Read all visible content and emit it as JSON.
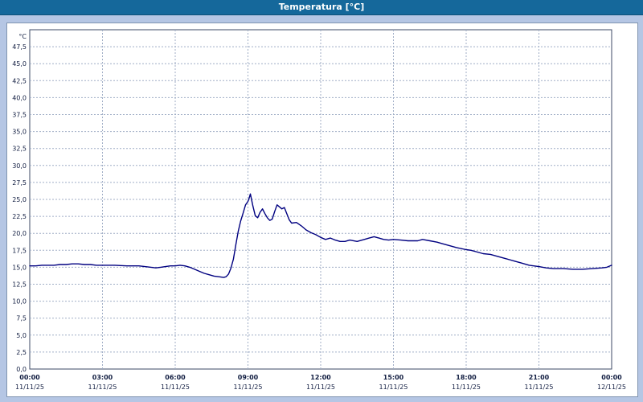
{
  "window": {
    "title": "Temperatura [°C]"
  },
  "colors": {
    "titlebar_bg": "#15689b",
    "page_bg": "#b5c6e4",
    "panel_bg": "#ffffff",
    "grid": "#a0aec6",
    "plot_border": "#3c4a66",
    "axis_text": "#101c40",
    "line": "#000080"
  },
  "chart_data": {
    "type": "line",
    "title": "Temperatura [°C]",
    "xlabel": "",
    "ylabel": "°C",
    "ylim": [
      0,
      50
    ],
    "xlim_hours": [
      0,
      24
    ],
    "grid": "dashed",
    "legend": "none",
    "y_ticks": [
      {
        "value": 0.0,
        "label": "0,0"
      },
      {
        "value": 2.5,
        "label": "2,5"
      },
      {
        "value": 5.0,
        "label": "5,0"
      },
      {
        "value": 7.5,
        "label": "7,5"
      },
      {
        "value": 10.0,
        "label": "10,0"
      },
      {
        "value": 12.5,
        "label": "12,5"
      },
      {
        "value": 15.0,
        "label": "15,0"
      },
      {
        "value": 17.5,
        "label": "17,5"
      },
      {
        "value": 20.0,
        "label": "20,0"
      },
      {
        "value": 22.5,
        "label": "22,5"
      },
      {
        "value": 25.0,
        "label": "25,0"
      },
      {
        "value": 27.5,
        "label": "27,5"
      },
      {
        "value": 30.0,
        "label": "30,0"
      },
      {
        "value": 32.5,
        "label": "32,5"
      },
      {
        "value": 35.0,
        "label": "35,0"
      },
      {
        "value": 37.5,
        "label": "37,5"
      },
      {
        "value": 40.0,
        "label": "40,0"
      },
      {
        "value": 42.5,
        "label": "42,5"
      },
      {
        "value": 45.0,
        "label": "45,0"
      },
      {
        "value": 47.5,
        "label": "47,5"
      }
    ],
    "x_ticks": [
      {
        "hour": 0,
        "time": "00:00",
        "date": "11/11/25"
      },
      {
        "hour": 3,
        "time": "03:00",
        "date": "11/11/25"
      },
      {
        "hour": 6,
        "time": "06:00",
        "date": "11/11/25"
      },
      {
        "hour": 9,
        "time": "09:00",
        "date": "11/11/25"
      },
      {
        "hour": 12,
        "time": "12:00",
        "date": "11/11/25"
      },
      {
        "hour": 15,
        "time": "15:00",
        "date": "11/11/25"
      },
      {
        "hour": 18,
        "time": "18:00",
        "date": "11/11/25"
      },
      {
        "hour": 21,
        "time": "21:00",
        "date": "11/11/25"
      },
      {
        "hour": 24,
        "time": "00:00",
        "date": "12/11/25"
      }
    ],
    "series": [
      {
        "name": "Temperatura",
        "color": "#000080",
        "points": [
          [
            0,
            15.2
          ],
          [
            0.25,
            15.2
          ],
          [
            0.5,
            15.3
          ],
          [
            0.75,
            15.3
          ],
          [
            1,
            15.3
          ],
          [
            1.25,
            15.4
          ],
          [
            1.5,
            15.4
          ],
          [
            1.75,
            15.5
          ],
          [
            2,
            15.5
          ],
          [
            2.25,
            15.4
          ],
          [
            2.5,
            15.4
          ],
          [
            2.75,
            15.3
          ],
          [
            3,
            15.3
          ],
          [
            3.5,
            15.3
          ],
          [
            4,
            15.2
          ],
          [
            4.5,
            15.2
          ],
          [
            4.75,
            15.1
          ],
          [
            5,
            15.0
          ],
          [
            5.2,
            14.9
          ],
          [
            5.4,
            15.0
          ],
          [
            5.6,
            15.1
          ],
          [
            5.8,
            15.2
          ],
          [
            6,
            15.2
          ],
          [
            6.2,
            15.3
          ],
          [
            6.4,
            15.2
          ],
          [
            6.6,
            15.0
          ],
          [
            6.8,
            14.7
          ],
          [
            7,
            14.4
          ],
          [
            7.2,
            14.1
          ],
          [
            7.4,
            13.9
          ],
          [
            7.6,
            13.7
          ],
          [
            7.8,
            13.6
          ],
          [
            8,
            13.5
          ],
          [
            8.1,
            13.6
          ],
          [
            8.2,
            14.0
          ],
          [
            8.3,
            14.9
          ],
          [
            8.4,
            16.2
          ],
          [
            8.5,
            18.3
          ],
          [
            8.6,
            20.3
          ],
          [
            8.7,
            21.8
          ],
          [
            8.8,
            23.0
          ],
          [
            8.9,
            24.2
          ],
          [
            9,
            24.7
          ],
          [
            9.05,
            25.2
          ],
          [
            9.1,
            25.8
          ],
          [
            9.2,
            24.1
          ],
          [
            9.3,
            22.6
          ],
          [
            9.4,
            22.3
          ],
          [
            9.5,
            23.1
          ],
          [
            9.6,
            23.6
          ],
          [
            9.7,
            22.9
          ],
          [
            9.8,
            22.3
          ],
          [
            9.9,
            21.9
          ],
          [
            10,
            22.1
          ],
          [
            10.1,
            23.2
          ],
          [
            10.2,
            24.2
          ],
          [
            10.3,
            23.9
          ],
          [
            10.4,
            23.6
          ],
          [
            10.5,
            23.8
          ],
          [
            10.6,
            22.9
          ],
          [
            10.7,
            22.0
          ],
          [
            10.8,
            21.5
          ],
          [
            11,
            21.6
          ],
          [
            11.2,
            21.1
          ],
          [
            11.4,
            20.5
          ],
          [
            11.6,
            20.1
          ],
          [
            11.8,
            19.8
          ],
          [
            12,
            19.4
          ],
          [
            12.2,
            19.1
          ],
          [
            12.4,
            19.3
          ],
          [
            12.6,
            19.0
          ],
          [
            12.8,
            18.8
          ],
          [
            13,
            18.8
          ],
          [
            13.2,
            19.0
          ],
          [
            13.5,
            18.8
          ],
          [
            13.8,
            19.1
          ],
          [
            14,
            19.3
          ],
          [
            14.2,
            19.5
          ],
          [
            14.4,
            19.3
          ],
          [
            14.6,
            19.1
          ],
          [
            14.8,
            19.0
          ],
          [
            15,
            19.1
          ],
          [
            15.3,
            19.0
          ],
          [
            15.6,
            18.9
          ],
          [
            16,
            18.9
          ],
          [
            16.2,
            19.1
          ],
          [
            16.5,
            18.9
          ],
          [
            16.8,
            18.7
          ],
          [
            17,
            18.5
          ],
          [
            17.3,
            18.2
          ],
          [
            17.6,
            17.9
          ],
          [
            18,
            17.6
          ],
          [
            18.2,
            17.5
          ],
          [
            18.4,
            17.3
          ],
          [
            18.7,
            17.0
          ],
          [
            19,
            16.9
          ],
          [
            19.3,
            16.6
          ],
          [
            19.6,
            16.3
          ],
          [
            20,
            15.9
          ],
          [
            20.3,
            15.6
          ],
          [
            20.6,
            15.3
          ],
          [
            21,
            15.1
          ],
          [
            21.3,
            14.9
          ],
          [
            21.6,
            14.8
          ],
          [
            22,
            14.8
          ],
          [
            22.4,
            14.7
          ],
          [
            22.8,
            14.7
          ],
          [
            23.2,
            14.8
          ],
          [
            23.6,
            14.9
          ],
          [
            23.8,
            15.0
          ],
          [
            24,
            15.3
          ]
        ]
      }
    ]
  }
}
